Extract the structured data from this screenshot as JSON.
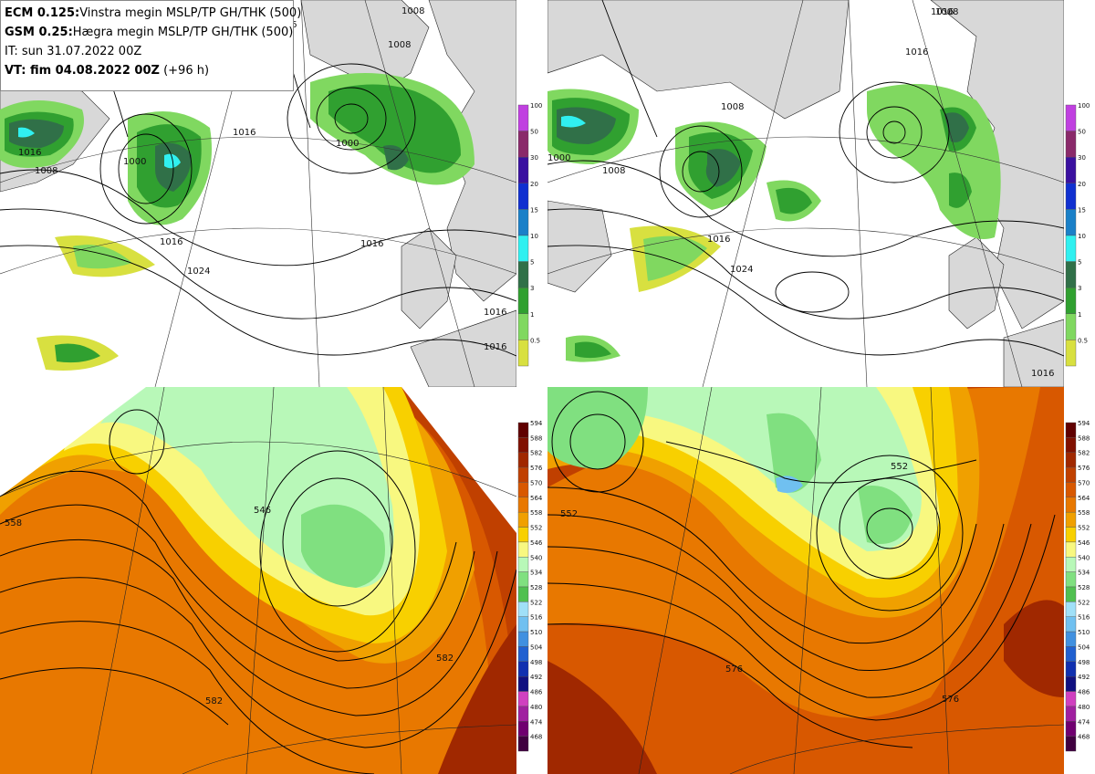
{
  "header": {
    "line1_bold": "ECM 0.125:",
    "line1_rest": "Vinstra megin MSLP/TP GH/THK (500)",
    "line2_bold": "GSM 0.25:",
    "line2_rest": "Hægra megin MSLP/TP GH/THK (500)",
    "line3": "IT: sun 31.07.2022 00Z",
    "line4_bold": "VT: fim 04.08.2022 00Z",
    "line4_rest": "(+96 h)"
  },
  "precip_legend": {
    "ticks": [
      "100",
      "50",
      "30",
      "20",
      "15",
      "10",
      "5",
      "3",
      "1",
      "0.5"
    ],
    "colors": [
      "#c040e0",
      "#8a2a6a",
      "#3a10a0",
      "#1030d0",
      "#1a80c8",
      "#30f0f0",
      "#307048",
      "#30a030",
      "#80d860",
      "#d8e040"
    ]
  },
  "thickness_legend": {
    "ticks": [
      "594",
      "588",
      "582",
      "576",
      "570",
      "564",
      "558",
      "552",
      "546",
      "540",
      "534",
      "528",
      "522",
      "516",
      "510",
      "504",
      "498",
      "492",
      "486",
      "480",
      "474",
      "468"
    ],
    "colors": [
      "#600000",
      "#801000",
      "#a02800",
      "#c04000",
      "#d85800",
      "#e87800",
      "#f0a000",
      "#f8d000",
      "#f8f880",
      "#b8f8b8",
      "#80e080",
      "#50c050",
      "#a0e0f8",
      "#70c0f0",
      "#4090e0",
      "#2060d0",
      "#1030b0",
      "#101080",
      "#d040c0",
      "#a020a0",
      "#700070",
      "#400040"
    ]
  },
  "mslp_labels_left": [
    "1008",
    "1016",
    "1016",
    "1008",
    "1000",
    "1016",
    "1024",
    "1016",
    "1000",
    "1016",
    "1016",
    "1016",
    "1008"
  ],
  "mslp_labels_right": [
    "1016",
    "1008",
    "1008",
    "1008",
    "1000",
    "1016",
    "1024",
    "1016",
    "1016"
  ],
  "gh_labels_left": [
    "558",
    "546",
    "582",
    "582"
  ],
  "gh_labels_right": [
    "552",
    "552",
    "576",
    "576"
  ],
  "colors": {
    "land": "#d8d8d8",
    "sea": "#ffffff",
    "precip_light": "#d8e040",
    "precip_mid": "#80d860",
    "precip_green": "#30a030",
    "precip_dark": "#307048",
    "precip_cyan": "#30f0f0"
  }
}
